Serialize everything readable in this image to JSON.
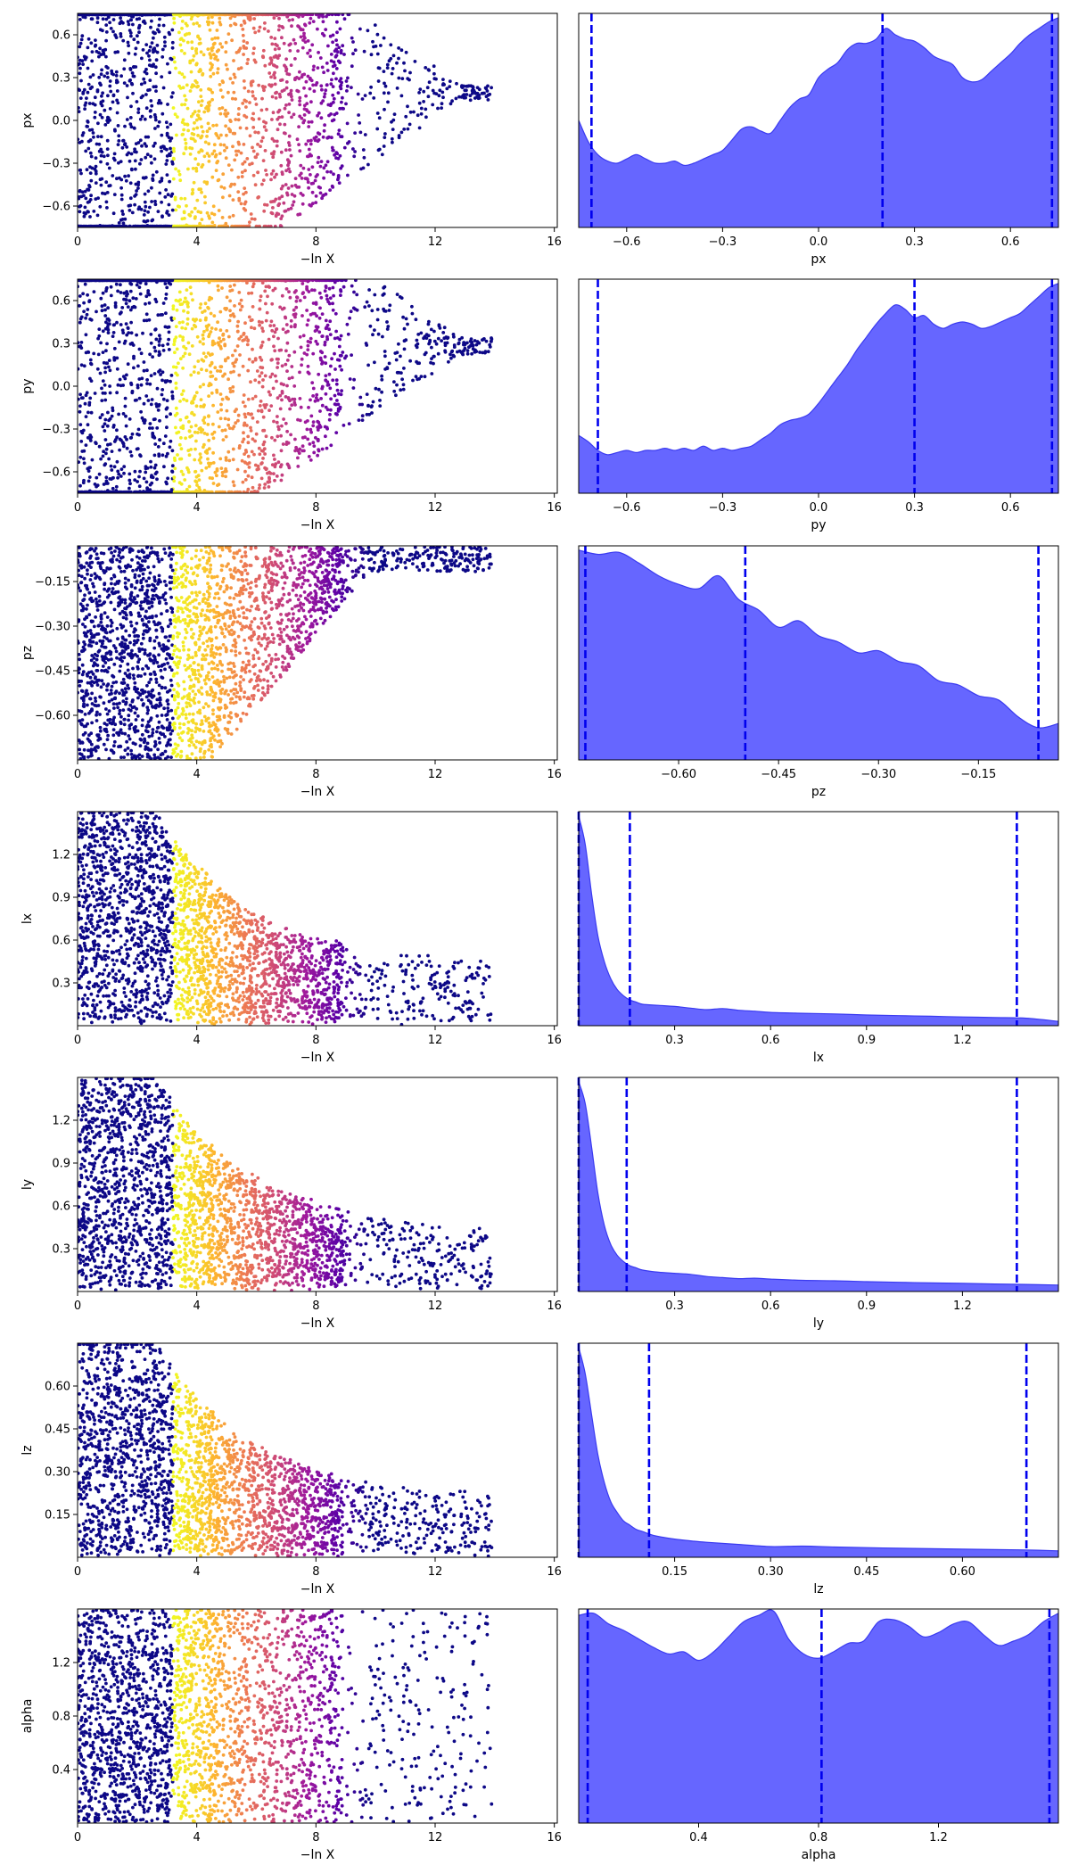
{
  "colors": {
    "density_fill": "#6666ff",
    "density_edge": "#3a3af0",
    "quantile_line": "#0000ee",
    "scatter_colormap": [
      "#0d0887",
      "#5c01a6",
      "#9c179e",
      "#cc4778",
      "#ed7953",
      "#fdb42f",
      "#f0f921"
    ]
  },
  "chart_data": [
    {
      "type": "scatter",
      "name": "px-trace",
      "xlabel": "−ln X",
      "ylabel": "px",
      "xlim": [
        0,
        16.1
      ],
      "ylim": [
        -0.75,
        0.75
      ],
      "xticks": [
        0,
        4,
        8,
        12,
        16
      ],
      "xtick_labels": [
        "0",
        "4",
        "8",
        "12",
        "16"
      ],
      "yticks": [
        -0.6,
        -0.3,
        0.0,
        0.3,
        0.6
      ],
      "ytick_labels": [
        "−0.6",
        "−0.3",
        "0.0",
        "0.3",
        "0.6"
      ],
      "posterior_peak": 0.2
    },
    {
      "type": "area",
      "name": "px-density",
      "xlabel": "px",
      "xlim": [
        -0.75,
        0.75
      ],
      "xticks": [
        -0.6,
        -0.3,
        0.0,
        0.3,
        0.6
      ],
      "xtick_labels": [
        "−0.6",
        "−0.3",
        "0.0",
        "0.3",
        "0.6"
      ],
      "x": [
        -0.75,
        -0.72,
        -0.69,
        -0.66,
        -0.63,
        -0.6,
        -0.57,
        -0.54,
        -0.51,
        -0.48,
        -0.45,
        -0.42,
        -0.39,
        -0.36,
        -0.33,
        -0.3,
        -0.27,
        -0.24,
        -0.21,
        -0.18,
        -0.15,
        -0.12,
        -0.09,
        -0.06,
        -0.03,
        0.0,
        0.03,
        0.06,
        0.09,
        0.12,
        0.15,
        0.18,
        0.21,
        0.24,
        0.27,
        0.3,
        0.33,
        0.36,
        0.39,
        0.42,
        0.45,
        0.48,
        0.51,
        0.54,
        0.57,
        0.6,
        0.63,
        0.66,
        0.69,
        0.72,
        0.75
      ],
      "density": [
        0.5,
        0.4,
        0.34,
        0.31,
        0.3,
        0.32,
        0.34,
        0.32,
        0.3,
        0.3,
        0.31,
        0.29,
        0.3,
        0.32,
        0.34,
        0.36,
        0.41,
        0.46,
        0.47,
        0.45,
        0.44,
        0.5,
        0.56,
        0.6,
        0.62,
        0.7,
        0.74,
        0.77,
        0.83,
        0.86,
        0.86,
        0.88,
        0.93,
        0.9,
        0.88,
        0.87,
        0.84,
        0.8,
        0.78,
        0.76,
        0.7,
        0.68,
        0.69,
        0.73,
        0.77,
        0.81,
        0.86,
        0.9,
        0.93,
        0.96,
        0.98
      ],
      "quantiles": [
        -0.71,
        0.2,
        0.73
      ]
    },
    {
      "type": "scatter",
      "name": "py-trace",
      "xlabel": "−ln X",
      "ylabel": "py",
      "xlim": [
        0,
        16.1
      ],
      "ylim": [
        -0.75,
        0.75
      ],
      "xticks": [
        0,
        4,
        8,
        12,
        16
      ],
      "xtick_labels": [
        "0",
        "4",
        "8",
        "12",
        "16"
      ],
      "yticks": [
        -0.6,
        -0.3,
        0.0,
        0.3,
        0.6
      ],
      "ytick_labels": [
        "−0.6",
        "−0.3",
        "0.0",
        "0.3",
        "0.6"
      ],
      "posterior_peak": 0.28
    },
    {
      "type": "area",
      "name": "py-density",
      "xlabel": "py",
      "xlim": [
        -0.75,
        0.75
      ],
      "xticks": [
        -0.6,
        -0.3,
        0.0,
        0.3,
        0.6
      ],
      "xtick_labels": [
        "−0.6",
        "−0.3",
        "0.0",
        "0.3",
        "0.6"
      ],
      "x": [
        -0.75,
        -0.72,
        -0.69,
        -0.66,
        -0.63,
        -0.6,
        -0.57,
        -0.54,
        -0.51,
        -0.48,
        -0.45,
        -0.42,
        -0.39,
        -0.36,
        -0.33,
        -0.3,
        -0.27,
        -0.24,
        -0.21,
        -0.18,
        -0.15,
        -0.12,
        -0.09,
        -0.06,
        -0.03,
        0.0,
        0.03,
        0.06,
        0.09,
        0.12,
        0.15,
        0.18,
        0.21,
        0.24,
        0.27,
        0.3,
        0.33,
        0.36,
        0.39,
        0.42,
        0.45,
        0.48,
        0.51,
        0.54,
        0.57,
        0.6,
        0.63,
        0.66,
        0.69,
        0.72,
        0.75
      ],
      "density": [
        0.27,
        0.24,
        0.2,
        0.18,
        0.19,
        0.2,
        0.19,
        0.2,
        0.2,
        0.21,
        0.2,
        0.21,
        0.2,
        0.22,
        0.2,
        0.21,
        0.2,
        0.21,
        0.22,
        0.25,
        0.28,
        0.32,
        0.34,
        0.35,
        0.37,
        0.42,
        0.48,
        0.54,
        0.6,
        0.67,
        0.73,
        0.79,
        0.84,
        0.88,
        0.86,
        0.82,
        0.83,
        0.79,
        0.77,
        0.79,
        0.8,
        0.79,
        0.77,
        0.78,
        0.8,
        0.82,
        0.84,
        0.88,
        0.92,
        0.96,
        0.98
      ],
      "quantiles": [
        -0.69,
        0.3,
        0.73
      ]
    },
    {
      "type": "scatter",
      "name": "pz-trace",
      "xlabel": "−ln X",
      "ylabel": "pz",
      "xlim": [
        0,
        16.1
      ],
      "ylim": [
        -0.75,
        -0.03
      ],
      "xticks": [
        0,
        4,
        8,
        12,
        16
      ],
      "xtick_labels": [
        "0",
        "4",
        "8",
        "12",
        "16"
      ],
      "yticks": [
        -0.6,
        -0.45,
        -0.3,
        -0.15
      ],
      "ytick_labels": [
        "−0.60",
        "−0.45",
        "−0.30",
        "−0.15"
      ],
      "posterior_peak": -0.05
    },
    {
      "type": "area",
      "name": "pz-density",
      "xlabel": "pz",
      "xlim": [
        -0.75,
        -0.03
      ],
      "xticks": [
        -0.6,
        -0.45,
        -0.3,
        -0.15
      ],
      "xtick_labels": [
        "−0.60",
        "−0.45",
        "−0.30",
        "−0.15"
      ],
      "x": [
        -0.75,
        -0.72,
        -0.69,
        -0.66,
        -0.63,
        -0.6,
        -0.57,
        -0.54,
        -0.51,
        -0.48,
        -0.45,
        -0.42,
        -0.39,
        -0.36,
        -0.33,
        -0.3,
        -0.27,
        -0.24,
        -0.21,
        -0.18,
        -0.15,
        -0.12,
        -0.09,
        -0.06,
        -0.03
      ],
      "density": [
        0.98,
        0.96,
        0.97,
        0.92,
        0.86,
        0.82,
        0.8,
        0.86,
        0.75,
        0.7,
        0.62,
        0.65,
        0.58,
        0.55,
        0.5,
        0.51,
        0.46,
        0.44,
        0.37,
        0.35,
        0.3,
        0.28,
        0.2,
        0.15,
        0.17
      ],
      "quantiles": [
        -0.74,
        -0.5,
        -0.06
      ]
    },
    {
      "type": "scatter",
      "name": "lx-trace",
      "xlabel": "−ln X",
      "ylabel": "lx",
      "xlim": [
        0,
        16.1
      ],
      "ylim": [
        0,
        1.5
      ],
      "xticks": [
        0,
        4,
        8,
        12,
        16
      ],
      "xtick_labels": [
        "0",
        "4",
        "8",
        "12",
        "16"
      ],
      "yticks": [
        0.3,
        0.6,
        0.9,
        1.2
      ],
      "ytick_labels": [
        "0.3",
        "0.6",
        "0.9",
        "1.2"
      ],
      "posterior_peak": 0.01
    },
    {
      "type": "area",
      "name": "lx-density",
      "xlabel": "lx",
      "xlim": [
        0,
        1.5
      ],
      "xticks": [
        0.3,
        0.6,
        0.9,
        1.2
      ],
      "xtick_labels": [
        "0.3",
        "0.6",
        "0.9",
        "1.2"
      ],
      "x": [
        0.0,
        0.02,
        0.04,
        0.06,
        0.08,
        0.1,
        0.12,
        0.14,
        0.16,
        0.18,
        0.2,
        0.25,
        0.3,
        0.35,
        0.4,
        0.45,
        0.5,
        0.55,
        0.6,
        0.7,
        0.8,
        0.9,
        1.0,
        1.1,
        1.2,
        1.3,
        1.4,
        1.5
      ],
      "density": [
        0.98,
        0.85,
        0.62,
        0.42,
        0.3,
        0.22,
        0.17,
        0.14,
        0.12,
        0.11,
        0.1,
        0.095,
        0.09,
        0.082,
        0.075,
        0.08,
        0.072,
        0.068,
        0.062,
        0.058,
        0.055,
        0.05,
        0.047,
        0.044,
        0.041,
        0.038,
        0.035,
        0.02
      ],
      "quantiles": [
        0.0,
        0.16,
        1.37
      ]
    },
    {
      "type": "scatter",
      "name": "ly-trace",
      "xlabel": "−ln X",
      "ylabel": "ly",
      "xlim": [
        0,
        16.1
      ],
      "ylim": [
        0,
        1.5
      ],
      "xticks": [
        0,
        4,
        8,
        12,
        16
      ],
      "xtick_labels": [
        "0",
        "4",
        "8",
        "12",
        "16"
      ],
      "yticks": [
        0.3,
        0.6,
        0.9,
        1.2
      ],
      "ytick_labels": [
        "0.3",
        "0.6",
        "0.9",
        "1.2"
      ],
      "posterior_peak": 0.01
    },
    {
      "type": "area",
      "name": "ly-density",
      "xlabel": "ly",
      "xlim": [
        0,
        1.5
      ],
      "xticks": [
        0.3,
        0.6,
        0.9,
        1.2
      ],
      "xtick_labels": [
        "0.3",
        "0.6",
        "0.9",
        "1.2"
      ],
      "x": [
        0.0,
        0.02,
        0.04,
        0.06,
        0.08,
        0.1,
        0.12,
        0.14,
        0.16,
        0.18,
        0.2,
        0.25,
        0.3,
        0.35,
        0.4,
        0.45,
        0.5,
        0.55,
        0.6,
        0.7,
        0.8,
        0.9,
        1.0,
        1.1,
        1.2,
        1.3,
        1.4,
        1.5
      ],
      "density": [
        0.98,
        0.88,
        0.68,
        0.46,
        0.31,
        0.22,
        0.17,
        0.14,
        0.12,
        0.11,
        0.1,
        0.09,
        0.085,
        0.08,
        0.07,
        0.065,
        0.06,
        0.062,
        0.058,
        0.052,
        0.05,
        0.046,
        0.043,
        0.04,
        0.038,
        0.035,
        0.033,
        0.03
      ],
      "quantiles": [
        0.0,
        0.15,
        1.37
      ]
    },
    {
      "type": "scatter",
      "name": "lz-trace",
      "xlabel": "−ln X",
      "ylabel": "lz",
      "xlim": [
        0,
        16.1
      ],
      "ylim": [
        0,
        0.75
      ],
      "xticks": [
        0,
        4,
        8,
        12,
        16
      ],
      "xtick_labels": [
        "0",
        "4",
        "8",
        "12",
        "16"
      ],
      "yticks": [
        0.15,
        0.3,
        0.45,
        0.6
      ],
      "ytick_labels": [
        "0.15",
        "0.30",
        "0.45",
        "0.60"
      ],
      "posterior_peak": 0.01
    },
    {
      "type": "area",
      "name": "lz-density",
      "xlabel": "lz",
      "xlim": [
        0,
        0.75
      ],
      "xticks": [
        0.15,
        0.3,
        0.45,
        0.6
      ],
      "xtick_labels": [
        "0.15",
        "0.30",
        "0.45",
        "0.60"
      ],
      "x": [
        0.0,
        0.01,
        0.02,
        0.03,
        0.04,
        0.05,
        0.06,
        0.07,
        0.08,
        0.09,
        0.1,
        0.12,
        0.15,
        0.18,
        0.2,
        0.25,
        0.3,
        0.35,
        0.4,
        0.45,
        0.5,
        0.55,
        0.6,
        0.65,
        0.7,
        0.75
      ],
      "density": [
        0.98,
        0.86,
        0.67,
        0.48,
        0.35,
        0.26,
        0.21,
        0.17,
        0.15,
        0.13,
        0.12,
        0.1,
        0.085,
        0.075,
        0.07,
        0.06,
        0.05,
        0.052,
        0.048,
        0.045,
        0.042,
        0.04,
        0.038,
        0.036,
        0.034,
        0.03
      ],
      "quantiles": [
        0.0,
        0.11,
        0.7
      ]
    },
    {
      "type": "scatter",
      "name": "alpha-trace",
      "xlabel": "−ln X",
      "ylabel": "alpha",
      "xlim": [
        0,
        16.1
      ],
      "ylim": [
        0,
        1.6
      ],
      "xticks": [
        0,
        4,
        8,
        12,
        16
      ],
      "xtick_labels": [
        "0",
        "4",
        "8",
        "12",
        "16"
      ],
      "yticks": [
        0.4,
        0.8,
        1.2
      ],
      "ytick_labels": [
        "0.4",
        "0.8",
        "1.2"
      ],
      "posterior_peak": 0.8
    },
    {
      "type": "area",
      "name": "alpha-density",
      "xlabel": "alpha",
      "xlim": [
        0,
        1.6
      ],
      "xticks": [
        0.4,
        0.8,
        1.2
      ],
      "xtick_labels": [
        "0.4",
        "0.8",
        "1.2"
      ],
      "x": [
        0.0,
        0.05,
        0.1,
        0.15,
        0.2,
        0.25,
        0.3,
        0.35,
        0.4,
        0.45,
        0.5,
        0.55,
        0.6,
        0.65,
        0.7,
        0.75,
        0.8,
        0.85,
        0.9,
        0.95,
        1.0,
        1.05,
        1.1,
        1.15,
        1.2,
        1.25,
        1.3,
        1.35,
        1.4,
        1.45,
        1.5,
        1.55,
        1.6
      ],
      "density": [
        0.97,
        0.98,
        0.93,
        0.9,
        0.86,
        0.82,
        0.79,
        0.8,
        0.76,
        0.8,
        0.87,
        0.94,
        0.97,
        0.99,
        0.86,
        0.79,
        0.77,
        0.8,
        0.84,
        0.85,
        0.94,
        0.95,
        0.92,
        0.87,
        0.89,
        0.93,
        0.94,
        0.88,
        0.83,
        0.85,
        0.88,
        0.94,
        0.98
      ],
      "quantiles": [
        0.03,
        0.81,
        1.57
      ]
    }
  ]
}
